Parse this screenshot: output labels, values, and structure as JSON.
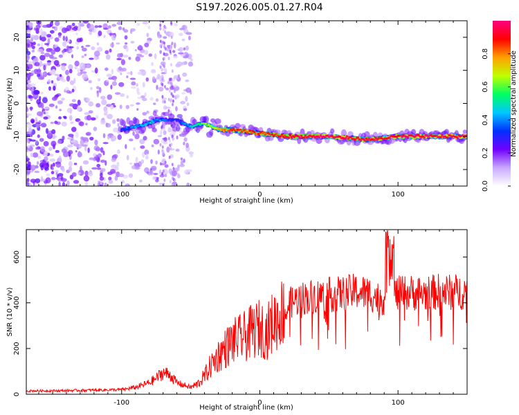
{
  "title": "S197.2026.005.01.27.R04",
  "chart_data": [
    {
      "type": "heatmap",
      "xlabel": "Height of straight line (km)",
      "ylabel": "Frequency (Hz)",
      "xlim": [
        -169,
        150
      ],
      "ylim": [
        -25,
        25
      ],
      "xticks": [
        -100,
        0,
        100
      ],
      "yticks": [
        -20,
        -10,
        0,
        10,
        20
      ],
      "xtick_labels": [
        "-100",
        "0",
        "100"
      ],
      "ytick_labels": [
        "-20",
        "-10",
        "0",
        "10",
        "20"
      ],
      "ridge": {
        "x": [
          -100,
          -80,
          -75,
          -60,
          -50,
          -40,
          -30,
          -20,
          0,
          20,
          50,
          80,
          100,
          150
        ],
        "freq": [
          -8,
          -6,
          -5,
          -5,
          -7,
          -6,
          -8,
          -8,
          -9,
          -10,
          -10,
          -11,
          -10,
          -10
        ],
        "amplitude": [
          0.35,
          0.45,
          0.4,
          0.3,
          0.45,
          0.6,
          0.7,
          0.85,
          0.85,
          0.9,
          0.95,
          0.9,
          0.95,
          0.95
        ]
      },
      "colorbar": {
        "label": "Normalized spectral amplitude",
        "range": [
          0,
          1
        ],
        "ticks": [
          0.0,
          0.2,
          0.4,
          0.6,
          0.8
        ],
        "tick_labels": [
          "0.0",
          "0.2",
          "0.4",
          "0.6",
          "0.8"
        ],
        "colors": [
          "#ffffff",
          "#c8a8ff",
          "#7000ff",
          "#0030ff",
          "#00c8ff",
          "#00ff60",
          "#c0ff00",
          "#ffa000",
          "#ff0000",
          "#ff0080"
        ]
      }
    },
    {
      "type": "line",
      "xlabel": "Height of straight line (km)",
      "ylabel": "SNR (10 * v/v)",
      "xlim": [
        -169,
        150
      ],
      "ylim": [
        0,
        720
      ],
      "xticks": [
        -100,
        0,
        100
      ],
      "yticks": [
        0,
        200,
        400,
        600
      ],
      "xtick_labels": [
        "-100",
        "0",
        "100"
      ],
      "ytick_labels": [
        "0",
        "200",
        "400",
        "600"
      ],
      "color": "#ff0000",
      "series": [
        {
          "name": "SNR",
          "x": [
            -169,
            -150,
            -120,
            -100,
            -90,
            -80,
            -75,
            -70,
            -65,
            -60,
            -55,
            -50,
            -45,
            -40,
            -35,
            -30,
            -25,
            -20,
            -15,
            -10,
            -5,
            0,
            5,
            10,
            15,
            20,
            25,
            30,
            40,
            50,
            60,
            70,
            80,
            85,
            90,
            95,
            100,
            110,
            120,
            130,
            140,
            150
          ],
          "y": [
            15,
            15,
            18,
            20,
            30,
            50,
            70,
            95,
            85,
            50,
            40,
            30,
            45,
            80,
            130,
            170,
            200,
            230,
            240,
            255,
            275,
            290,
            270,
            320,
            350,
            390,
            410,
            420,
            430,
            435,
            440,
            450,
            440,
            420,
            420,
            430,
            440,
            445,
            440,
            450,
            445,
            450
          ]
        }
      ],
      "spike": {
        "x": 94,
        "y": 720
      }
    }
  ]
}
